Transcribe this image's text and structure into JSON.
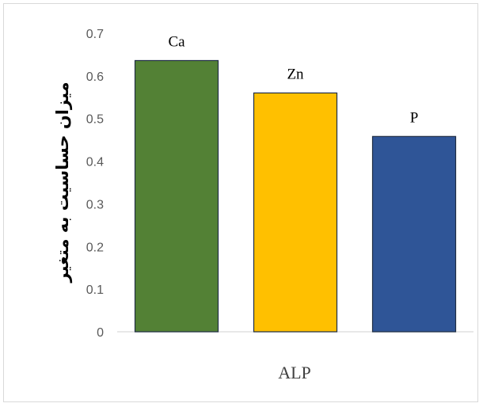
{
  "chart_data": {
    "type": "bar",
    "categories": [
      "Ca",
      "Zn",
      "P"
    ],
    "values": [
      0.636,
      0.56,
      0.458
    ],
    "colors": [
      "#538135",
      "#ffc000",
      "#2f5597"
    ],
    "bar_labels": [
      "Ca",
      "Zn",
      "P"
    ],
    "xlabel": "ALP",
    "ylabel": "میزان حساسیت به متغیر",
    "ylim": [
      0,
      0.7
    ],
    "yticks": [
      "0",
      "0.1",
      "0.2",
      "0.3",
      "0.4",
      "0.5",
      "0.6",
      "0.7"
    ],
    "grid": false
  }
}
